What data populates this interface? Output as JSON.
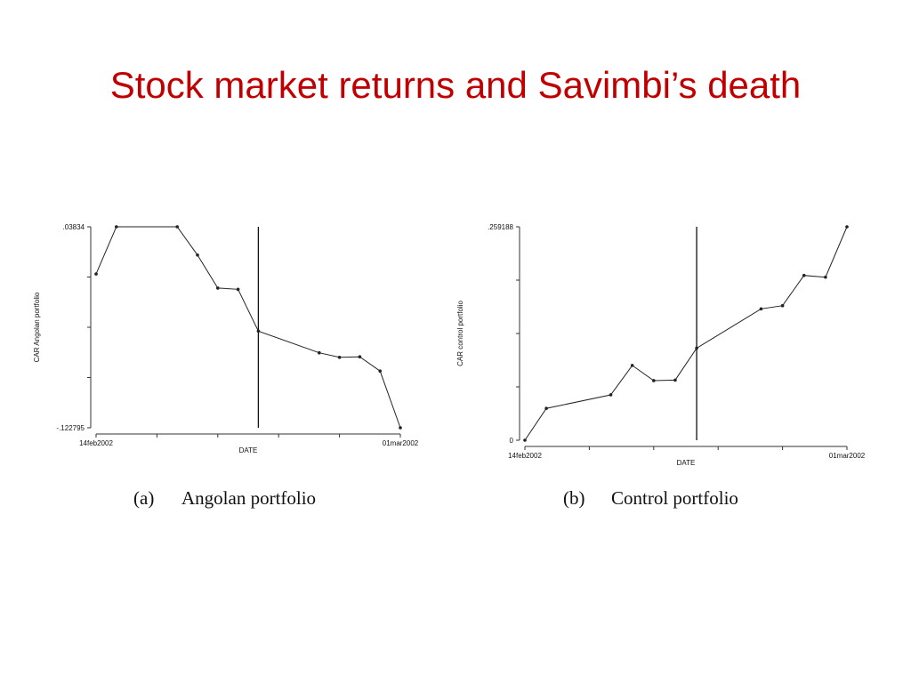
{
  "slide": {
    "title": "Stock market returns and Savimbi’s death"
  },
  "chart_data": [
    {
      "type": "line",
      "panel_letter": "(a)",
      "panel_caption": "Angolan portfolio",
      "xlabel": "DATE",
      "ylabel": "CAR Angolan portfolio",
      "x_tick_labels": [
        "14feb2002",
        "01mar2002"
      ],
      "y_tick_labels": [
        ".03834",
        "-.122795"
      ],
      "x_num_ticks": 6,
      "y_num_ticks": 5,
      "ylim": [
        -0.122795,
        0.03834
      ],
      "xlim": [
        "2002-02-14",
        "2002-03-01"
      ],
      "event_line_date": "2002-02-22",
      "line_color": "#222222",
      "x": [
        "2002-02-14",
        "2002-02-15",
        "2002-02-18",
        "2002-02-19",
        "2002-02-20",
        "2002-02-21",
        "2002-02-22",
        "2002-02-25",
        "2002-02-26",
        "2002-02-27",
        "2002-02-28",
        "2002-03-01"
      ],
      "y": [
        0.0005,
        0.03834,
        0.03834,
        0.0157,
        -0.0108,
        -0.0118,
        -0.0453,
        -0.0627,
        -0.0663,
        -0.0659,
        -0.0773,
        -0.1228
      ]
    },
    {
      "type": "line",
      "panel_letter": "(b)",
      "panel_caption": "Control portfolio",
      "xlabel": "DATE",
      "ylabel": "CAR control portfolio",
      "x_tick_labels": [
        "14feb2002",
        "01mar2002"
      ],
      "y_tick_labels": [
        ".259188",
        "0"
      ],
      "x_num_ticks": 6,
      "y_num_ticks": 5,
      "ylim": [
        0,
        0.259188
      ],
      "xlim": [
        "2002-02-14",
        "2002-03-01"
      ],
      "event_line_date": "2002-02-22",
      "line_color": "#222222",
      "x": [
        "2002-02-14",
        "2002-02-15",
        "2002-02-18",
        "2002-02-19",
        "2002-02-20",
        "2002-02-21",
        "2002-02-22",
        "2002-02-25",
        "2002-02-26",
        "2002-02-27",
        "2002-02-28",
        "2002-03-01"
      ],
      "y": [
        0.0,
        0.0387,
        0.0551,
        0.0908,
        0.0724,
        0.073,
        0.1118,
        0.1595,
        0.1634,
        0.2001,
        0.198,
        0.259188
      ]
    }
  ]
}
